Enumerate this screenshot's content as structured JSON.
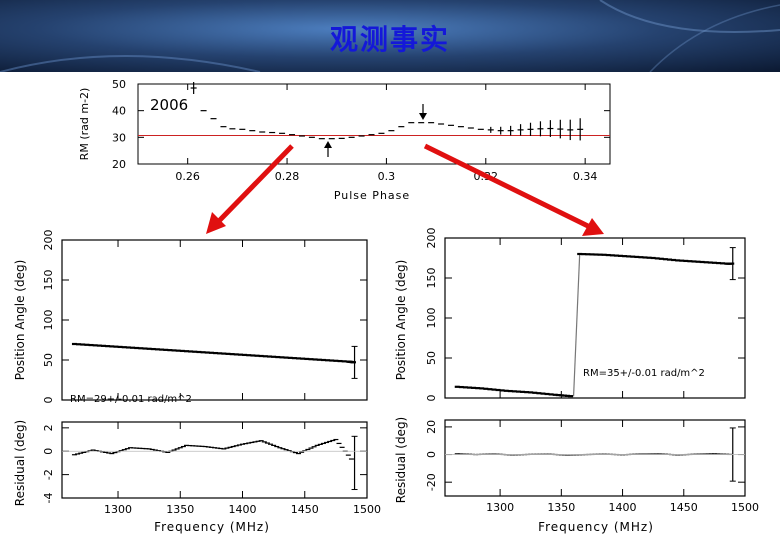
{
  "slide": {
    "title": "观测事实",
    "colors": {
      "header_dark": "#0d1f3a",
      "header_light": "#3f6fae",
      "title": "#1418d8",
      "arrow": "#e01010",
      "ref_line": "#cc2222"
    }
  },
  "top_plot": {
    "year_label": "2006",
    "ylabel": "RM (rad m-2)",
    "xlabel": "Pulse Phase",
    "yticks": [
      "50",
      "40",
      "30",
      "20"
    ],
    "xticks": [
      "0.26",
      "0.28",
      "0.3",
      "0.32",
      "0.34"
    ],
    "xlim": [
      0.25,
      0.345
    ],
    "ylim": [
      20,
      50
    ],
    "reference_rm": 31.5
  },
  "left_plot": {
    "pa_ylabel": "Position Angle (deg)",
    "res_ylabel": "Residual (deg)",
    "xlabel": "Frequency (MHz)",
    "annotation": "RM=29+/-0.01 rad/m^2",
    "pa_yticks": [
      "0",
      "50",
      "100",
      "150",
      "200"
    ],
    "res_yticks": [
      "2",
      "0",
      "-2",
      "-4"
    ],
    "xticks": [
      "1300",
      "1350",
      "1400",
      "1450",
      "1500"
    ]
  },
  "right_plot": {
    "pa_ylabel": "Position Angle (deg)",
    "res_ylabel": "Residual (deg)",
    "xlabel": "Frequency (MHz)",
    "annotation": "RM=35+/-0.01 rad/m^2",
    "pa_yticks": [
      "0",
      "50",
      "100",
      "150",
      "200"
    ],
    "res_yticks": [
      "20",
      "0",
      "-20"
    ],
    "xticks": [
      "1300",
      "1350",
      "1400",
      "1450",
      "1500"
    ]
  },
  "chart_data": [
    {
      "type": "scatter",
      "xlabel": "Pulse Phase",
      "ylabel": "RM (rad m-2)",
      "xlim": [
        0.25,
        0.345
      ],
      "ylim": [
        20,
        50
      ],
      "series": [
        {
          "x": [
            0.2612,
            0.2632,
            0.2652,
            0.2672,
            0.269,
            0.271,
            0.273,
            0.275,
            0.277,
            0.279,
            0.281,
            0.283,
            0.285,
            0.287,
            0.289,
            0.291,
            0.293,
            0.295,
            0.297,
            0.299,
            0.301,
            0.303,
            0.305,
            0.307,
            0.309,
            0.311,
            0.313,
            0.315,
            0.317,
            0.319,
            0.321,
            0.323,
            0.325,
            0.327,
            0.329,
            0.331,
            0.333,
            0.335,
            0.337,
            0.339
          ],
          "y": [
            48.5,
            40,
            37,
            34,
            33.2,
            33,
            32.5,
            32,
            31.8,
            31.5,
            31,
            30.5,
            30,
            29.5,
            29.5,
            29.6,
            30,
            30.5,
            31,
            31.5,
            32.5,
            34,
            35.5,
            35.5,
            35.5,
            35,
            34.5,
            34,
            33.5,
            33,
            32.8,
            32.5,
            32.5,
            32.8,
            33,
            33.2,
            33.3,
            33.1,
            32.8,
            33
          ]
        }
      ]
    },
    {
      "type": "scatter",
      "xlabel": "Frequency (MHz)",
      "ylabel": "Position Angle (deg)",
      "xlim": [
        1255,
        1500
      ],
      "ylim": [
        0,
        200
      ],
      "series": [
        {
          "x": [
            1265,
            1285,
            1305,
            1325,
            1345,
            1365,
            1385,
            1405,
            1425,
            1445,
            1465,
            1485,
            1490
          ],
          "y": [
            70,
            68,
            66,
            64,
            62,
            60,
            58,
            56,
            54,
            52,
            50,
            48,
            47
          ]
        }
      ]
    },
    {
      "type": "scatter",
      "xlabel": "Frequency (MHz)",
      "ylabel": "Residual (deg)",
      "xlim": [
        1255,
        1500
      ],
      "ylim": [
        -4,
        2.5
      ],
      "series": [
        {
          "x": [
            1265,
            1280,
            1295,
            1310,
            1325,
            1340,
            1355,
            1370,
            1385,
            1400,
            1415,
            1430,
            1445,
            1460,
            1475,
            1490
          ],
          "y": [
            -0.3,
            0.1,
            -0.2,
            0.3,
            0.2,
            -0.1,
            0.5,
            0.4,
            0.2,
            0.6,
            0.9,
            0.3,
            -0.2,
            0.5,
            1.0,
            -1.0
          ]
        }
      ]
    },
    {
      "type": "scatter",
      "xlabel": "Frequency (MHz)",
      "ylabel": "Position Angle (deg)",
      "xlim": [
        1255,
        1500
      ],
      "ylim": [
        0,
        200
      ],
      "series": [
        {
          "x": [
            1265,
            1285,
            1305,
            1325,
            1345,
            1360,
            1365,
            1385,
            1405,
            1425,
            1445,
            1465,
            1485,
            1490
          ],
          "y": [
            14,
            12,
            9,
            7,
            4,
            2,
            180,
            179,
            177,
            175,
            172,
            170,
            168,
            168
          ]
        }
      ]
    },
    {
      "type": "scatter",
      "xlabel": "Frequency (MHz)",
      "ylabel": "Residual (deg)",
      "xlim": [
        1255,
        1500
      ],
      "ylim": [
        -30,
        25
      ],
      "series": [
        {
          "x": [
            1265,
            1280,
            1295,
            1310,
            1325,
            1340,
            1355,
            1370,
            1385,
            1400,
            1415,
            1430,
            1445,
            1460,
            1475,
            1490
          ],
          "y": [
            0.5,
            0,
            0.3,
            -0.2,
            0.1,
            0.2,
            -0.3,
            0,
            0.2,
            -0.1,
            0.3,
            0.4,
            -0.2,
            0.2,
            0.5,
            0
          ]
        }
      ]
    }
  ]
}
